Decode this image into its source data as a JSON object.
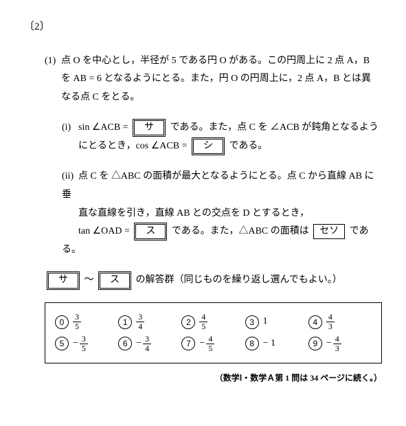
{
  "header": {
    "problem_number": "〔2〕"
  },
  "part1": {
    "label": "(1)",
    "text_line1": "点 O を中心とし，半径が 5 である円 O がある。この円周上に 2 点 A，B",
    "text_line2": "を AB = 6 となるようにとる。また，円 O の円周上に，2 点 A，B とは異",
    "text_line3": "なる点 C をとる。"
  },
  "sub_i": {
    "label": "(i)",
    "pre1": "sin ∠ACB =",
    "box1": "サ",
    "mid1": "である。また，点 C を ∠ACB が鈍角となるよう",
    "line2_pre": "にとるとき，cos ∠ACB =",
    "box2": "シ",
    "line2_post": "である。"
  },
  "sub_ii": {
    "label": "(ii)",
    "line1": "点 C を △ABC の面積が最大となるようにとる。点 C から直線 AB に垂",
    "line2": "直な直線を引き，直線 AB との交点を D とするとき，",
    "line3_pre": "tan ∠OAD =",
    "box3": "ス",
    "line3_mid": "である。また，△ABC の面積は",
    "box4": "セソ",
    "line3_post": "である。"
  },
  "choice_header": {
    "range_a": "サ",
    "tilde": "～",
    "range_b": "ス",
    "text": "の解答群（同じものを繰り返し選んでもよい。）"
  },
  "options": {
    "type": "choice-grid",
    "row1": [
      {
        "n": "0",
        "num": "3",
        "den": "5",
        "neg": false
      },
      {
        "n": "1",
        "num": "3",
        "den": "4",
        "neg": false
      },
      {
        "n": "2",
        "num": "4",
        "den": "5",
        "neg": false
      },
      {
        "n": "3",
        "plain": "1"
      },
      {
        "n": "4",
        "num": "4",
        "den": "3",
        "neg": false
      }
    ],
    "row2": [
      {
        "n": "5",
        "num": "3",
        "den": "5",
        "neg": true
      },
      {
        "n": "6",
        "num": "3",
        "den": "4",
        "neg": true
      },
      {
        "n": "7",
        "num": "4",
        "den": "5",
        "neg": true
      },
      {
        "n": "8",
        "plain": "− 1"
      },
      {
        "n": "9",
        "num": "4",
        "den": "3",
        "neg": true
      }
    ]
  },
  "footnote": "（数学Ⅰ・数学Ａ第 1 問は 34 ページに続く。）"
}
